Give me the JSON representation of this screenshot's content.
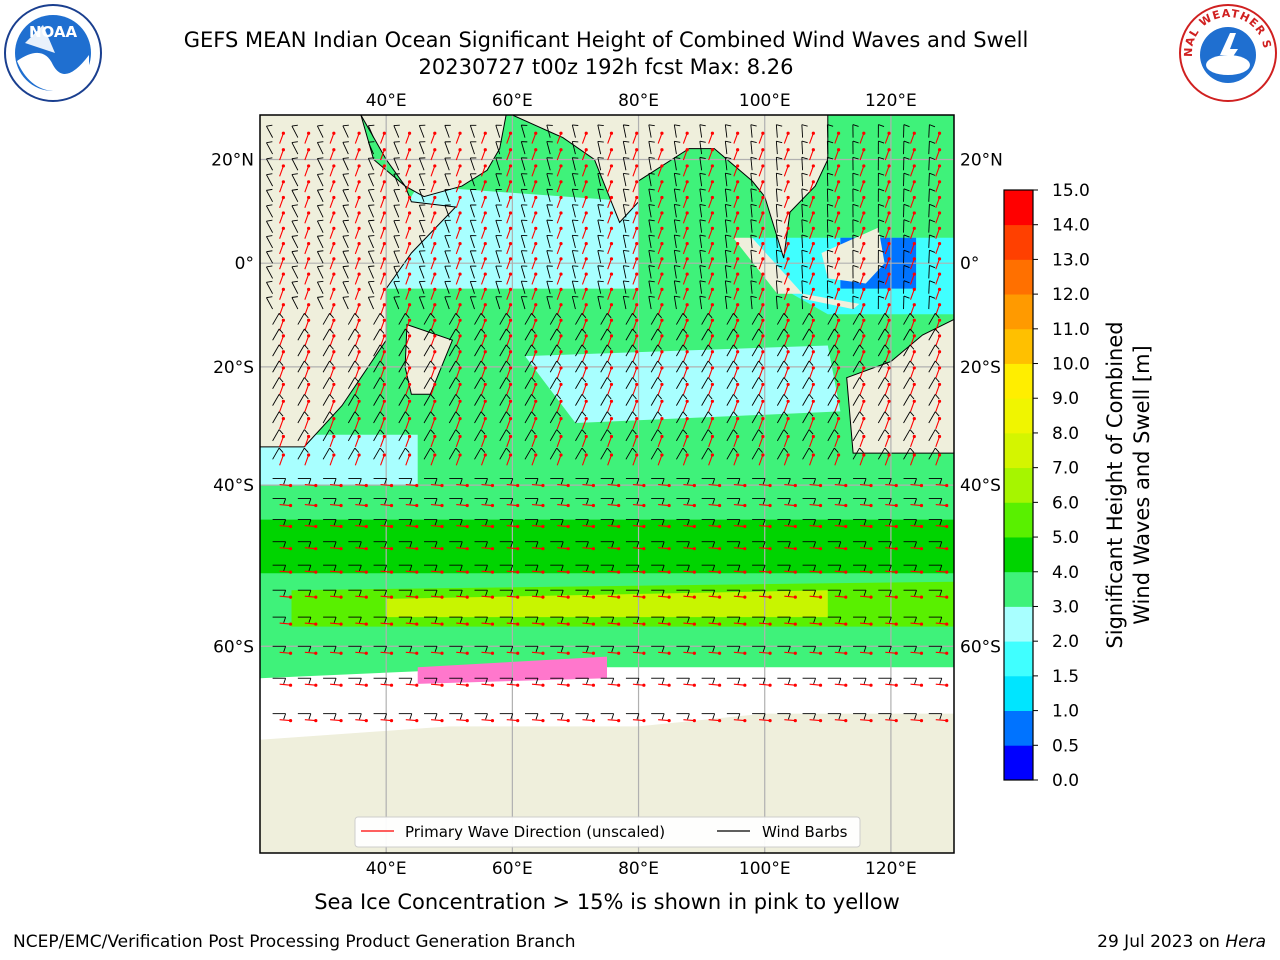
{
  "title": {
    "line1": "GEFS MEAN Indian Ocean Significant Height of Combined Wind Waves and Swell",
    "line2": "20230727 t00z 192h fcst   Max: 8.26"
  },
  "logos": {
    "left": "NOAA",
    "right": "NATIONAL WEATHER SERVICE"
  },
  "map": {
    "lon_top_labels": [
      "40°E",
      "60°E",
      "80°E",
      "100°E",
      "120°E"
    ],
    "lon_bottom_labels": [
      "40°E",
      "60°E",
      "80°E",
      "100°E",
      "120°E"
    ],
    "lat_left_labels": [
      "20°N",
      "0°",
      "20°S",
      "40°S",
      "60°S"
    ],
    "lat_right_labels": [
      "20°N",
      "0°",
      "20°S",
      "40°S",
      "60°S"
    ],
    "lon_range": [
      20,
      130
    ],
    "lat_range": [
      -75,
      28
    ],
    "legend": {
      "wave_dir": "Primary Wave Direction (unscaled)",
      "wind_barbs": "Wind Barbs",
      "wave_color": "#ff0000",
      "barb_color": "#000000"
    }
  },
  "colorbar": {
    "label_line1": "Significant Height of Combined",
    "label_line2": "Wind Waves and Swell [m]",
    "ticks": [
      "0.0",
      "0.5",
      "1.0",
      "1.5",
      "2.0",
      "3.0",
      "4.0",
      "5.0",
      "6.0",
      "7.0",
      "8.0",
      "9.0",
      "10.0",
      "11.0",
      "12.0",
      "13.0",
      "14.0",
      "15.0"
    ],
    "colors": [
      "#0000ff",
      "#0073ff",
      "#00e5ff",
      "#40ffff",
      "#a8ffff",
      "#3ff27a",
      "#00d400",
      "#59f000",
      "#a6f500",
      "#d4f500",
      "#f0f500",
      "#ffee00",
      "#ffc000",
      "#ff9a00",
      "#ff7000",
      "#ff4000",
      "#ff0000"
    ]
  },
  "caption": "Sea Ice Concentration > 15% is shown in pink to yellow",
  "footer": {
    "left": "NCEP/EMC/Verification Post Processing Product Generation Branch",
    "right_date": "29 Jul 2023 on ",
    "right_host": "Hera"
  }
}
